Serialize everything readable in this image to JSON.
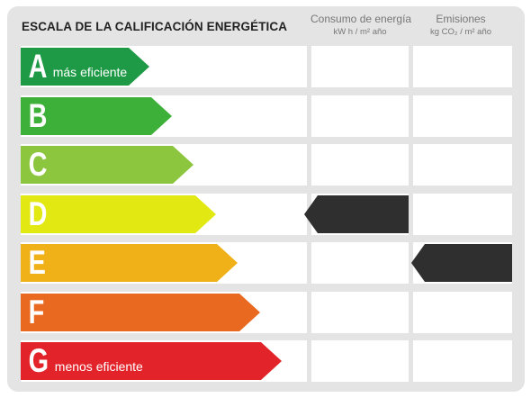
{
  "header": {
    "title": "ESCALA DE LA CALIFICACIÓN ENERGÉTICA",
    "columns": [
      {
        "label": "Consumo de energía",
        "unit": "kW h / m² año"
      },
      {
        "label": "Emisiones",
        "unit": "kg CO₂ / m² año"
      }
    ]
  },
  "bands": [
    {
      "letter": "A",
      "sub": "más eficiente",
      "color": "#1e9a46"
    },
    {
      "letter": "B",
      "sub": "",
      "color": "#3db039"
    },
    {
      "letter": "C",
      "sub": "",
      "color": "#8cc63e"
    },
    {
      "letter": "D",
      "sub": "",
      "color": "#e2e811"
    },
    {
      "letter": "E",
      "sub": "",
      "color": "#f0b118"
    },
    {
      "letter": "F",
      "sub": "",
      "color": "#e8691f"
    },
    {
      "letter": "G",
      "sub": "menos eficiente",
      "color": "#e2232a"
    }
  ],
  "ratings": {
    "consumo": "D",
    "emisiones": "E"
  },
  "marker_color": "#2f2f2f"
}
